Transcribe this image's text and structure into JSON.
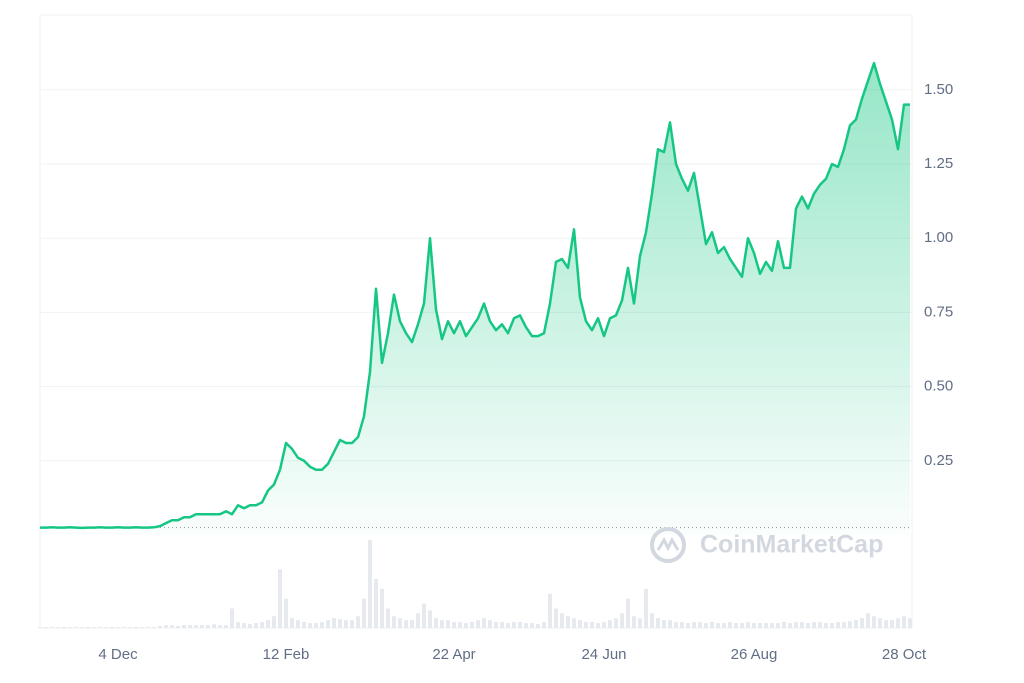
{
  "chart_data": {
    "type": "area",
    "color": "#16c784",
    "baseline": 0.025,
    "watermark": "CoinMarketCap",
    "categories": [
      null,
      null,
      null,
      null,
      null,
      null,
      null,
      null,
      null,
      null,
      null,
      null,
      null,
      "4 Dec",
      null,
      null,
      null,
      null,
      null,
      null,
      null,
      null,
      null,
      null,
      null,
      null,
      null,
      null,
      null,
      null,
      null,
      null,
      null,
      null,
      null,
      null,
      null,
      null,
      null,
      null,
      null,
      "12 Feb",
      null,
      null,
      null,
      null,
      null,
      null,
      null,
      null,
      null,
      null,
      null,
      null,
      null,
      null,
      null,
      null,
      null,
      null,
      null,
      null,
      null,
      null,
      null,
      null,
      null,
      null,
      null,
      "22 Apr",
      null,
      null,
      null,
      null,
      null,
      null,
      null,
      null,
      null,
      null,
      null,
      null,
      null,
      null,
      null,
      null,
      null,
      null,
      null,
      null,
      null,
      null,
      null,
      null,
      "24 Jun",
      null,
      null,
      null,
      null,
      null,
      null,
      null,
      null,
      null,
      null,
      null,
      null,
      null,
      null,
      null,
      null,
      null,
      null,
      null,
      null,
      null,
      null,
      null,
      null,
      "26 Aug",
      null,
      null,
      null,
      null,
      null,
      null,
      null,
      null,
      null,
      null,
      null,
      null,
      null,
      null,
      null,
      null,
      null,
      null,
      null,
      null,
      null,
      null,
      null,
      null,
      "28 Oct",
      null
    ],
    "values": [
      0.025,
      0.025,
      0.026,
      0.025,
      0.025,
      0.026,
      0.025,
      0.024,
      0.025,
      0.025,
      0.026,
      0.025,
      0.025,
      0.026,
      0.025,
      0.025,
      0.026,
      0.025,
      0.025,
      0.026,
      0.03,
      0.04,
      0.05,
      0.05,
      0.06,
      0.06,
      0.07,
      0.07,
      0.07,
      0.07,
      0.07,
      0.08,
      0.07,
      0.1,
      0.09,
      0.1,
      0.1,
      0.11,
      0.15,
      0.17,
      0.22,
      0.31,
      0.29,
      0.26,
      0.25,
      0.23,
      0.22,
      0.22,
      0.24,
      0.28,
      0.32,
      0.31,
      0.31,
      0.33,
      0.4,
      0.55,
      0.83,
      0.58,
      0.68,
      0.81,
      0.72,
      0.68,
      0.65,
      0.71,
      0.78,
      1.0,
      0.76,
      0.66,
      0.72,
      0.68,
      0.72,
      0.67,
      0.7,
      0.73,
      0.78,
      0.72,
      0.69,
      0.71,
      0.68,
      0.73,
      0.74,
      0.7,
      0.67,
      0.67,
      0.68,
      0.78,
      0.92,
      0.93,
      0.9,
      1.03,
      0.8,
      0.72,
      0.69,
      0.73,
      0.67,
      0.73,
      0.74,
      0.79,
      0.9,
      0.78,
      0.94,
      1.02,
      1.15,
      1.3,
      1.29,
      1.39,
      1.25,
      1.2,
      1.16,
      1.22,
      1.1,
      0.98,
      1.02,
      0.95,
      0.97,
      0.93,
      0.9,
      0.87,
      1.0,
      0.95,
      0.88,
      0.92,
      0.89,
      0.99,
      0.9,
      0.9,
      1.1,
      1.14,
      1.1,
      1.15,
      1.18,
      1.2,
      1.25,
      1.24,
      1.3,
      1.38,
      1.4,
      1.47,
      1.53,
      1.59,
      1.52,
      1.46,
      1.4,
      1.3,
      1.45,
      1.45
    ],
    "volume": [
      1,
      1,
      1,
      1,
      1,
      1,
      1,
      1,
      1,
      1,
      1,
      1,
      1,
      1,
      1,
      1,
      1,
      1,
      1,
      1,
      2,
      3,
      3,
      2,
      3,
      3,
      3,
      3,
      3,
      4,
      3,
      3,
      20,
      6,
      5,
      4,
      5,
      6,
      8,
      12,
      60,
      30,
      10,
      8,
      6,
      5,
      5,
      6,
      8,
      10,
      9,
      8,
      8,
      12,
      30,
      90,
      50,
      40,
      20,
      12,
      10,
      8,
      8,
      15,
      25,
      18,
      10,
      8,
      8,
      6,
      6,
      5,
      6,
      8,
      10,
      8,
      6,
      6,
      5,
      6,
      6,
      5,
      5,
      4,
      6,
      35,
      20,
      15,
      12,
      10,
      8,
      6,
      6,
      5,
      6,
      8,
      10,
      15,
      30,
      12,
      10,
      40,
      15,
      10,
      8,
      8,
      6,
      6,
      5,
      6,
      6,
      5,
      6,
      5,
      5,
      6,
      5,
      5,
      6,
      5,
      5,
      5,
      5,
      5,
      6,
      5,
      6,
      6,
      5,
      6,
      6,
      5,
      5,
      6,
      6,
      7,
      8,
      10,
      15,
      12,
      10,
      8,
      8,
      10,
      12,
      10
    ],
    "ylim": [
      0,
      1.75
    ],
    "yticks": [
      0.25,
      {
        "value": 0.5,
        "label": "0.50"
      },
      0.75,
      {
        "value": 1,
        "label": "1.00"
      },
      1.25,
      {
        "value": 1.5,
        "label": "1.50"
      }
    ],
    "grid": true
  }
}
